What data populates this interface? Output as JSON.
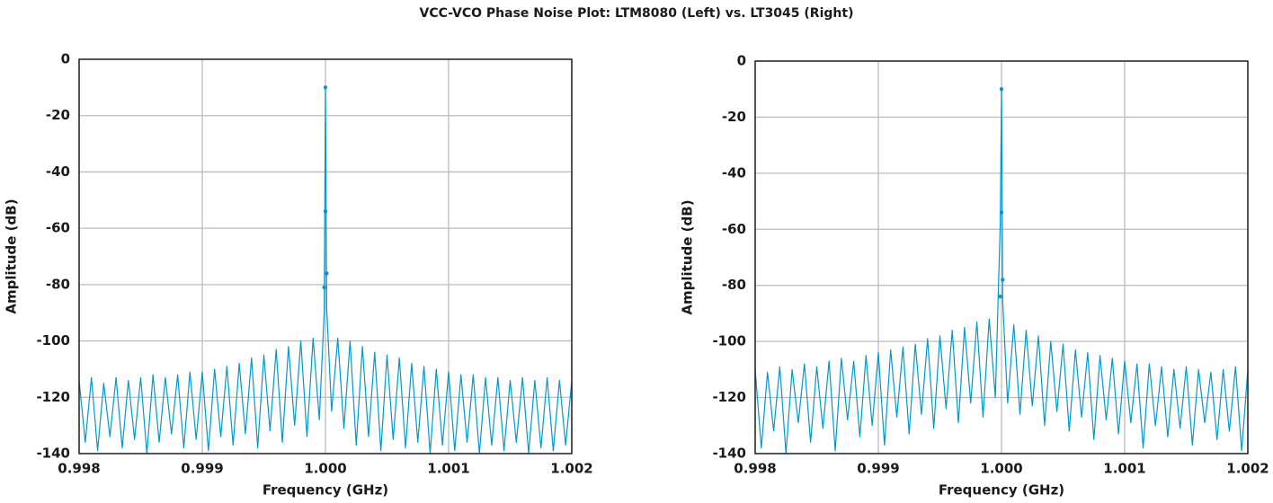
{
  "title": "VCC-VCO Phase Noise Plot: LTM8080 (Left) vs. LT3045 (Right)",
  "chart_data": [
    {
      "type": "line",
      "xlabel": "Frequency (GHz)",
      "ylabel": "Amplitude (dB)",
      "color": "#0099d0",
      "grid": true,
      "xlim": [
        0.998,
        1.002
      ],
      "xticks": [
        0.998,
        0.999,
        {
          "value": 1,
          "label": "1.000"
        },
        1.001,
        1.002
      ],
      "ylim": [
        -140,
        0
      ],
      "yticks": [
        -140,
        -120,
        -100,
        -80,
        -60,
        -40,
        -20,
        0
      ],
      "x": [
        0.998,
        0.99805,
        0.9981,
        0.99815,
        0.9982,
        0.99825,
        0.9983,
        0.99835,
        0.9984,
        0.99845,
        0.9985,
        0.99855,
        0.9986,
        0.99865,
        0.9987,
        0.99875,
        0.9988,
        0.99885,
        0.9989,
        0.99895,
        0.999,
        0.99905,
        0.9991,
        0.99915,
        0.9992,
        0.99925,
        0.9993,
        0.99935,
        0.9994,
        0.99945,
        0.9995,
        0.99955,
        0.9996,
        0.99965,
        0.9997,
        0.99975,
        0.9998,
        0.99985,
        0.9999,
        0.99995,
        0.99999,
        1.0,
        1.00001,
        1.00005,
        1.0001,
        1.00015,
        1.0002,
        1.00025,
        1.0003,
        1.00035,
        1.0004,
        1.00045,
        1.0005,
        1.00055,
        1.0006,
        1.00065,
        1.0007,
        1.00075,
        1.0008,
        1.00085,
        1.0009,
        1.00095,
        1.001,
        1.00105,
        1.0011,
        1.00115,
        1.0012,
        1.00125,
        1.0013,
        1.00135,
        1.0014,
        1.00145,
        1.0015,
        1.00155,
        1.0016,
        1.00165,
        1.0017,
        1.00175,
        1.0018,
        1.00185,
        1.0019,
        1.00195,
        1.002
      ],
      "values": [
        -114,
        -136,
        -113,
        -139,
        -115,
        -134,
        -113,
        -138,
        -114,
        -135,
        -113,
        -140,
        -112,
        -136,
        -113,
        -133,
        -112,
        -138,
        -111,
        -135,
        -111,
        -139,
        -110,
        -134,
        -109,
        -137,
        -108,
        -133,
        -106,
        -138,
        -105,
        -132,
        -103,
        -136,
        -102,
        -130,
        -100,
        -134,
        -99,
        -128,
        -90,
        -10,
        -88,
        -125,
        -99,
        -131,
        -100,
        -137,
        -102,
        -134,
        -104,
        -139,
        -105,
        -135,
        -106,
        -138,
        -108,
        -136,
        -109,
        -140,
        -110,
        -137,
        -111,
        -139,
        -112,
        -136,
        -112,
        -140,
        -113,
        -137,
        -113,
        -139,
        -114,
        -136,
        -113,
        -140,
        -114,
        -138,
        -113,
        -139,
        -114,
        -137,
        -114
      ],
      "markers": {
        "x": [
          1.0,
          1.0,
          1.00001,
          0.99999
        ],
        "values": [
          -10,
          -54,
          -76,
          -81
        ]
      }
    },
    {
      "type": "line",
      "xlabel": "Frequency (GHz)",
      "ylabel": "Amplitude (dB)",
      "color": "#0099d0",
      "grid": true,
      "xlim": [
        0.998,
        1.002
      ],
      "xticks": [
        0.998,
        0.999,
        {
          "value": 1,
          "label": "1.000"
        },
        1.001,
        1.002
      ],
      "ylim": [
        -140,
        0
      ],
      "yticks": [
        -140,
        -120,
        -100,
        -80,
        -60,
        -40,
        -20,
        0
      ],
      "x": [
        0.998,
        0.99805,
        0.9981,
        0.99815,
        0.9982,
        0.99825,
        0.9983,
        0.99835,
        0.9984,
        0.99845,
        0.9985,
        0.99855,
        0.9986,
        0.99865,
        0.9987,
        0.99875,
        0.9988,
        0.99885,
        0.9989,
        0.99895,
        0.999,
        0.99905,
        0.9991,
        0.99915,
        0.9992,
        0.99925,
        0.9993,
        0.99935,
        0.9994,
        0.99945,
        0.9995,
        0.99955,
        0.9996,
        0.99965,
        0.9997,
        0.99975,
        0.9998,
        0.99985,
        0.9999,
        0.99995,
        0.99999,
        1.0,
        1.00001,
        1.00005,
        1.0001,
        1.00015,
        1.0002,
        1.00025,
        1.0003,
        1.00035,
        1.0004,
        1.00045,
        1.0005,
        1.00055,
        1.0006,
        1.00065,
        1.0007,
        1.00075,
        1.0008,
        1.00085,
        1.0009,
        1.00095,
        1.001,
        1.00105,
        1.0011,
        1.00115,
        1.0012,
        1.00125,
        1.0013,
        1.00135,
        1.0014,
        1.00145,
        1.0015,
        1.00155,
        1.0016,
        1.00165,
        1.0017,
        1.00175,
        1.0018,
        1.00185,
        1.0019,
        1.00195,
        1.002
      ],
      "values": [
        -110,
        -138,
        -111,
        -132,
        -109,
        -140,
        -110,
        -129,
        -108,
        -136,
        -109,
        -131,
        -107,
        -139,
        -106,
        -128,
        -107,
        -134,
        -105,
        -130,
        -104,
        -137,
        -103,
        -127,
        -102,
        -133,
        -101,
        -126,
        -99,
        -131,
        -98,
        -124,
        -96,
        -129,
        -95,
        -122,
        -93,
        -127,
        -92,
        -120,
        -58,
        -10,
        -86,
        -122,
        -94,
        -126,
        -96,
        -123,
        -98,
        -130,
        -100,
        -125,
        -101,
        -132,
        -103,
        -127,
        -104,
        -135,
        -105,
        -128,
        -106,
        -133,
        -107,
        -129,
        -108,
        -138,
        -108,
        -130,
        -109,
        -134,
        -110,
        -131,
        -109,
        -137,
        -110,
        -129,
        -111,
        -135,
        -110,
        -132,
        -109,
        -139,
        -110
      ],
      "markers": {
        "x": [
          1.0,
          1.0,
          1.00001,
          0.99999
        ],
        "values": [
          -10,
          -54,
          -78,
          -84
        ]
      }
    }
  ]
}
